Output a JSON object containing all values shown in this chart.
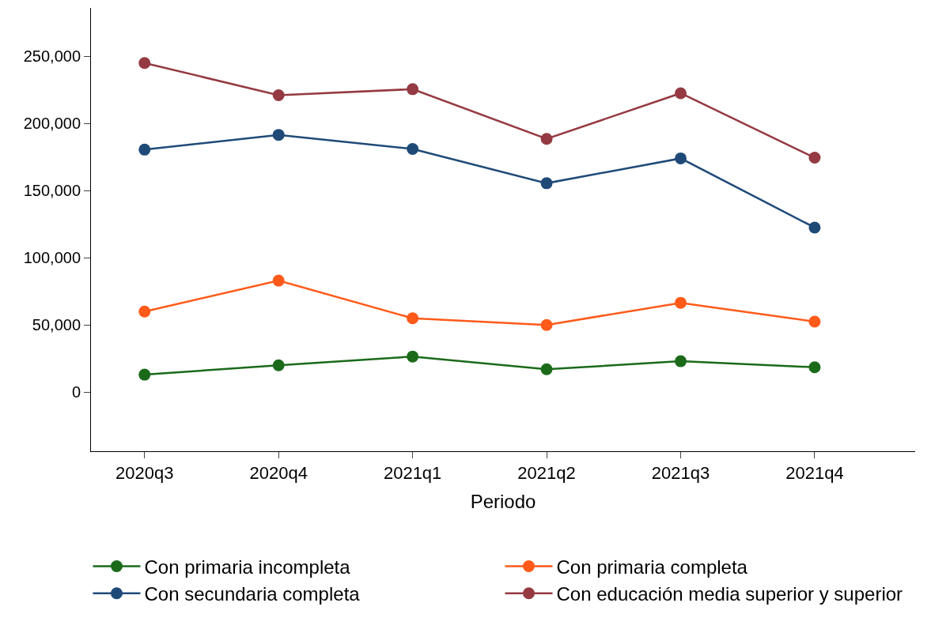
{
  "chart_data": {
    "type": "line",
    "xlabel": "Periodo",
    "categories": [
      "2020q3",
      "2020q4",
      "2021q1",
      "2021q2",
      "2021q3",
      "2021q4"
    ],
    "series": [
      {
        "name": "Con primaria incompleta",
        "color": "#1a6a1a",
        "values": [
          13000,
          20000,
          26500,
          17000,
          23000,
          18500
        ]
      },
      {
        "name": "Con primaria completa",
        "color": "#ff5a1a",
        "values": [
          60000,
          83000,
          55000,
          50000,
          66500,
          52500
        ]
      },
      {
        "name": "Con secundaria completa",
        "color": "#1f4a78",
        "values": [
          180500,
          191500,
          181000,
          155500,
          174000,
          122500
        ]
      },
      {
        "name": "Con educación media superior y superior",
        "color": "#953a42",
        "values": [
          245000,
          221000,
          225500,
          188500,
          222500,
          174500
        ]
      }
    ],
    "ylim": [
      -44000,
      286000
    ],
    "yticks": [
      {
        "value": 0,
        "label": "0"
      },
      {
        "value": 50000,
        "label": "50,000"
      },
      {
        "value": 100000,
        "label": "100,000"
      },
      {
        "value": 150000,
        "label": "150,000"
      },
      {
        "value": 200000,
        "label": "200,000"
      },
      {
        "value": 250000,
        "label": "250,000"
      }
    ],
    "legend": "bottom",
    "marker": "circle",
    "line_style": "solid"
  }
}
